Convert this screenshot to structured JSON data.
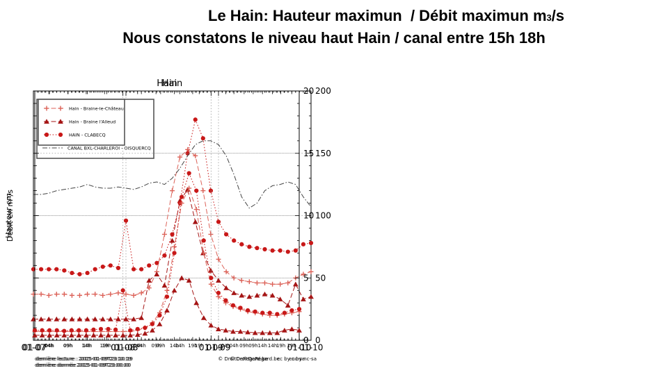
{
  "header": {
    "title_line1_pre": "Le Hain: Hauteur maximun  / Débit maximun m",
    "title_line1_sub": "3",
    "title_line1_post": "/s",
    "title_line2": "Nous constatons le niveau haut Hain / canal entre 15h 18h"
  },
  "colors": {
    "series_plus": "#dc6258",
    "series_triangle": "#a51515",
    "series_circle": "#c81818",
    "series_canal": "#444444",
    "grid": "#999999"
  },
  "chart_data": [
    {
      "type": "line",
      "title": "Hain",
      "ylabel": "Hauteur cm",
      "ylim": [
        0,
        200
      ],
      "ytick_step": 50,
      "yminor_step": 10,
      "ygrid": [
        50,
        100,
        150
      ],
      "xgrid_hours": [
        24,
        48
      ],
      "x_total_hours": 72,
      "x_hours_step": 2,
      "x_day_labels": [
        {
          "t": 0,
          "label": "01-07"
        },
        {
          "t": 24,
          "label": "01-08"
        },
        {
          "t": 48,
          "label": "01-09"
        },
        {
          "t": 72,
          "label": "01-10"
        }
      ],
      "x_hour_labels": [
        {
          "offset": 4,
          "label": "04h"
        },
        {
          "offset": 9,
          "label": "09h"
        },
        {
          "offset": 14,
          "label": "14h"
        },
        {
          "offset": 19,
          "label": "19h"
        }
      ],
      "series": [
        {
          "name": "Hain - Braine-le-Château",
          "marker": "plus",
          "line": "dashed",
          "color": "#dc6258",
          "values": [
            37,
            37,
            36,
            37,
            37,
            36,
            36,
            37,
            37,
            36,
            37,
            38,
            37,
            36,
            38,
            42,
            55,
            85,
            120,
            147,
            153,
            148,
            120,
            85,
            65,
            55,
            50,
            48,
            47,
            46,
            46,
            45,
            45,
            46,
            50,
            53,
            55
          ]
        },
        {
          "name": "Hain - Braine l'Alleud",
          "marker": "triangle",
          "line": "dashed",
          "color": "#a51515",
          "values": [
            17,
            17,
            17,
            17,
            17,
            17,
            17,
            17,
            17,
            17,
            17,
            17,
            17,
            17,
            18,
            48,
            53,
            44,
            80,
            112,
            121,
            95,
            70,
            56,
            48,
            42,
            38,
            36,
            35,
            36,
            37,
            36,
            33,
            28,
            45,
            33,
            35
          ]
        },
        {
          "name": "HAIN - CLABECQ",
          "marker": "circle",
          "line": "dotted",
          "color": "#c81818",
          "values": [
            57,
            57,
            57,
            57,
            56,
            54,
            53,
            54,
            57,
            59,
            60,
            58,
            96,
            57,
            57,
            60,
            62,
            68,
            85,
            110,
            150,
            177,
            162,
            120,
            95,
            85,
            80,
            77,
            75,
            74,
            73,
            72,
            72,
            71,
            72,
            77,
            78
          ]
        },
        {
          "name": "CANAL BXL-CHARLEROI - OISQUERCQ",
          "marker": "none",
          "line": "dashdot",
          "color": "#444444",
          "values": [
            117,
            117,
            118,
            120,
            121,
            122,
            123,
            125,
            123,
            122,
            122,
            123,
            122,
            121,
            123,
            126,
            127,
            125,
            130,
            138,
            148,
            157,
            160,
            160,
            157,
            148,
            133,
            115,
            106,
            110,
            120,
            124,
            125,
            127,
            125,
            115,
            107
          ]
        }
      ],
      "footer": {
        "line1": "dernière lecture : 2015-01-09T23:10:19",
        "line2": "dernière donnée  2015-01-09T23:00:00",
        "copyright": "© DroitDeRegard.be",
        "license": "cc by-nc-sa"
      }
    },
    {
      "type": "line",
      "title": "Hain",
      "ylabel": "Débit en m³/s",
      "ylim": [
        0,
        20
      ],
      "ytick_step": 5,
      "yminor_step": 1,
      "ygrid": [
        5,
        10,
        15
      ],
      "xgrid_hours": [
        24,
        48
      ],
      "x_total_hours": 72,
      "x_hours_step": 2,
      "x_day_labels": [
        {
          "t": 0,
          "label": "01-07"
        },
        {
          "t": 24,
          "label": "01-08"
        },
        {
          "t": 48,
          "label": "01-09"
        },
        {
          "t": 72,
          "label": "01-10"
        }
      ],
      "x_hour_labels": [
        {
          "offset": 4,
          "label": "04h"
        },
        {
          "offset": 9,
          "label": "09h"
        },
        {
          "offset": 14,
          "label": "14h"
        },
        {
          "offset": 19,
          "label": "19h"
        }
      ],
      "series": [
        {
          "name": "Hain - Braine-le-Château",
          "marker": "plus",
          "line": "dashed",
          "color": "#dc6258",
          "values": [
            0.7,
            0.7,
            0.7,
            0.7,
            0.7,
            0.7,
            0.7,
            0.7,
            0.7,
            0.7,
            0.7,
            0.7,
            0.7,
            0.7,
            0.8,
            1.0,
            1.4,
            2.2,
            4.0,
            7.5,
            11.0,
            12.2,
            10.5,
            7.0,
            4.5,
            3.5,
            3.0,
            2.7,
            2.5,
            2.3,
            2.2,
            2.1,
            2.0,
            2.0,
            2.1,
            2.2,
            2.3
          ]
        },
        {
          "name": "Hain - Braine l'Alleud",
          "marker": "triangle",
          "line": "dashed",
          "color": "#a51515",
          "values": [
            0.4,
            0.4,
            0.4,
            0.4,
            0.4,
            0.4,
            0.4,
            0.4,
            0.4,
            0.4,
            0.4,
            0.4,
            0.4,
            0.4,
            0.45,
            0.55,
            0.8,
            1.3,
            2.4,
            4.0,
            5.0,
            4.8,
            3.0,
            1.8,
            1.2,
            0.9,
            0.8,
            0.7,
            0.7,
            0.65,
            0.6,
            0.6,
            0.6,
            0.6,
            0.8,
            0.9,
            0.8
          ]
        },
        {
          "name": "HAIN - CLABECQ",
          "marker": "circle",
          "line": "dotted",
          "color": "#c81818",
          "values": [
            0.8,
            0.8,
            0.8,
            0.8,
            0.75,
            0.8,
            0.8,
            0.8,
            0.85,
            0.9,
            0.9,
            0.85,
            4.0,
            0.8,
            0.9,
            1.0,
            1.3,
            2.0,
            3.5,
            7.0,
            11.5,
            13.4,
            12.0,
            8.0,
            5.0,
            3.8,
            3.2,
            2.8,
            2.6,
            2.4,
            2.3,
            2.2,
            2.2,
            2.1,
            2.2,
            2.4,
            2.5
          ]
        }
      ],
      "footer": {
        "line1": "dernière lecture : 2015-01-09T23:10:19",
        "line2": "dernière donnée  2015-01-09T23:00:00",
        "copyright": "© DroitDeRegard.be",
        "license": "cc by-nc-sa"
      }
    }
  ]
}
